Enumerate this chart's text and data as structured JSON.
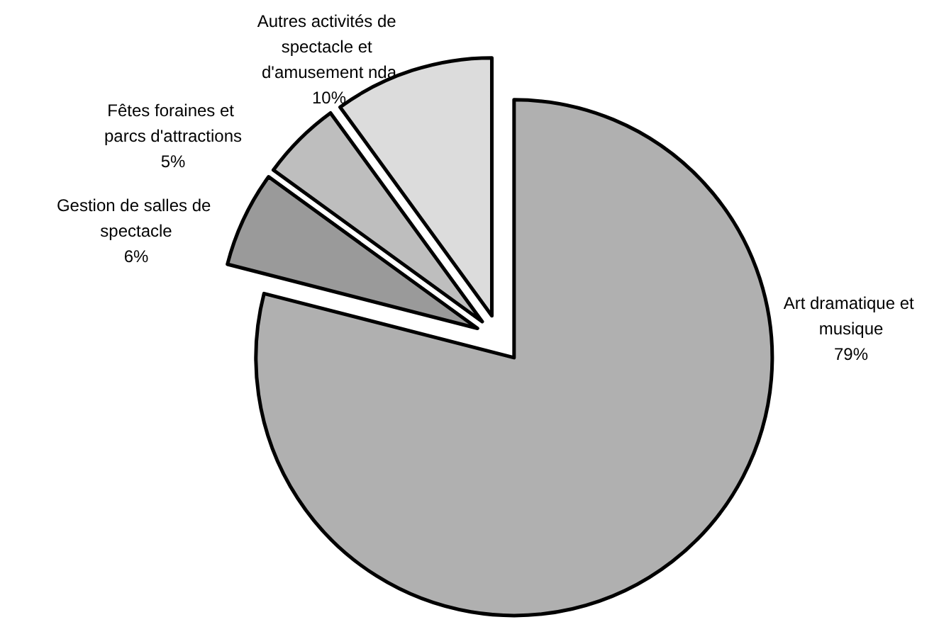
{
  "chart_data": {
    "type": "pie",
    "categories": [
      "Art dramatique et musique",
      "Gestion de salles de spectacle",
      "Fêtes foraines et parcs d'attractions",
      "Autres activités de spectacle et d'amusement nda"
    ],
    "values": [
      79,
      6,
      5,
      10
    ],
    "colors": [
      "#b0b0b0",
      "#9a9a9a",
      "#bebebe",
      "#dcdcdc"
    ],
    "value_labels": [
      "79%",
      "6%",
      "5%",
      "10%"
    ]
  }
}
